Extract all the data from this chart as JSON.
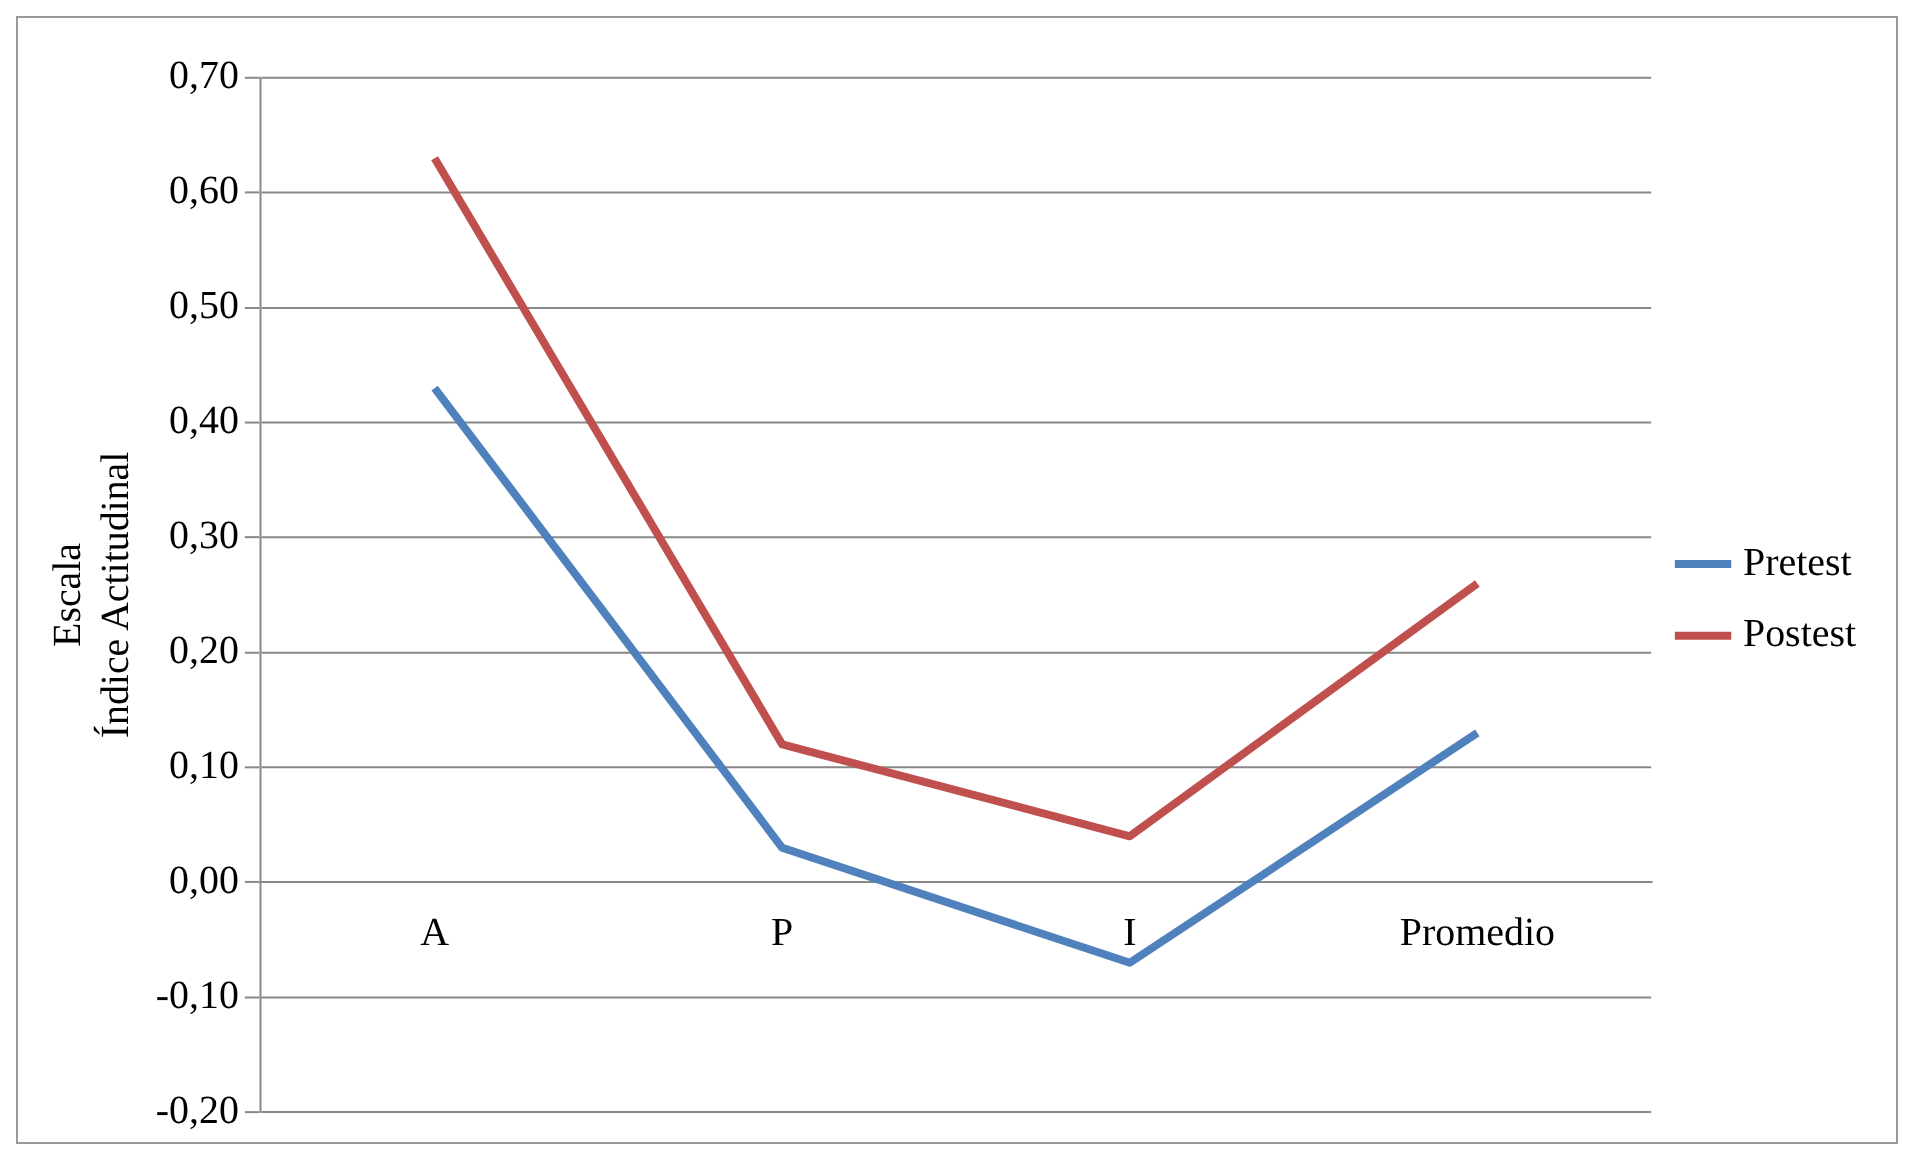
{
  "chart_data": {
    "type": "line",
    "ylabel": "Escala\nÍndice Actitudinal",
    "categories": [
      "A",
      "P",
      "I",
      "Promedio"
    ],
    "series": [
      {
        "name": "Pretest",
        "color": "#4f81bd",
        "values": [
          0.43,
          0.03,
          -0.07,
          0.13
        ]
      },
      {
        "name": "Postest",
        "color": "#c0504d",
        "values": [
          0.63,
          0.12,
          0.04,
          0.26
        ]
      }
    ],
    "ylim": [
      -0.2,
      0.7
    ],
    "yticks": [
      {
        "value": -0.2,
        "label": "-0,20"
      },
      {
        "value": -0.1,
        "label": "-0,10"
      },
      {
        "value": 0,
        "label": "0,00"
      },
      {
        "value": 0.1,
        "label": "0,10"
      },
      {
        "value": 0.2,
        "label": "0,20"
      },
      {
        "value": 0.3,
        "label": "0,30"
      },
      {
        "value": 0.4,
        "label": "0,40"
      },
      {
        "value": 0.5,
        "label": "0,50"
      },
      {
        "value": 0.6,
        "label": "0,60"
      },
      {
        "value": 0.7,
        "label": "0,70"
      }
    ],
    "grid": "y",
    "legend": "right",
    "marker": "none",
    "line_style": "solid"
  }
}
